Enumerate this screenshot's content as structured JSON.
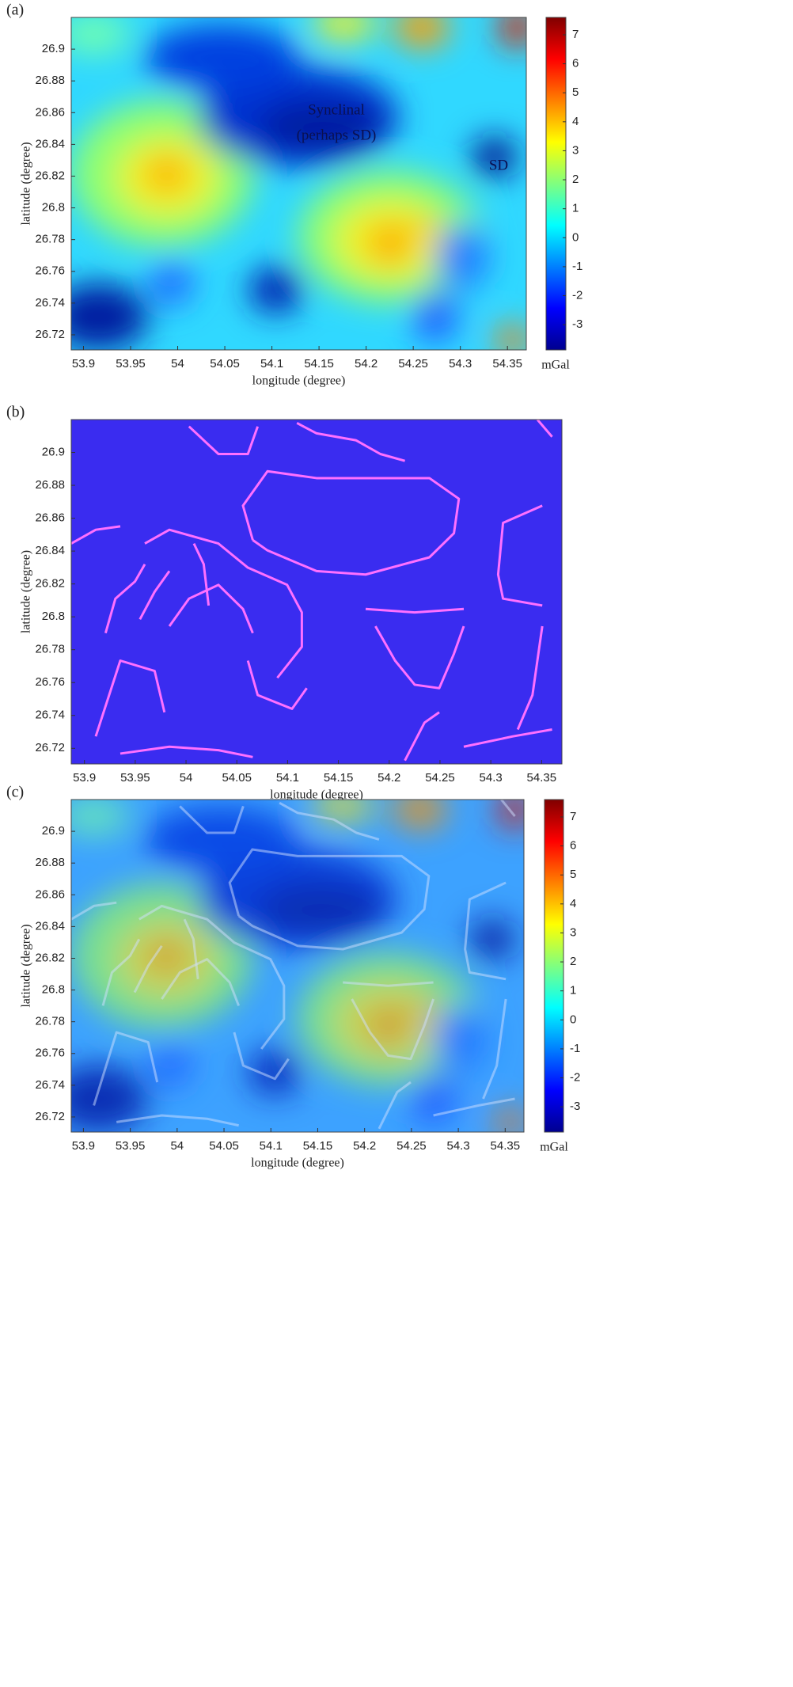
{
  "chart_data": [
    {
      "type": "heatmap",
      "label": "(a)",
      "colormap": "jet",
      "xlabel": "longitude (degree)",
      "ylabel": "latitude (degree)",
      "xlim": [
        53.887,
        54.37
      ],
      "ylim": [
        26.7105,
        26.92
      ],
      "xticks": [
        53.9,
        53.95,
        54,
        54.05,
        54.1,
        54.15,
        54.2,
        54.25,
        54.3,
        54.35
      ],
      "yticks": [
        26.72,
        26.74,
        26.76,
        26.78,
        26.8,
        26.82,
        26.84,
        26.86,
        26.88,
        26.9
      ],
      "clim": [
        -3.87,
        7.6
      ],
      "cticks": [
        -3,
        -2,
        -1,
        0,
        1,
        2,
        3,
        4,
        5,
        6,
        7
      ],
      "clabel": "mGal",
      "annotations": [
        "Synclinal",
        "(perhaps SD)",
        "SD"
      ]
    },
    {
      "type": "lineaments",
      "label": "(b)",
      "xlabel": "longitude (degree)",
      "ylabel": "latitude (degree)",
      "xlim": [
        53.887,
        54.37
      ],
      "ylim": [
        26.7105,
        26.92
      ],
      "xticks": [
        53.9,
        53.95,
        54,
        54.05,
        54.1,
        54.15,
        54.2,
        54.25,
        54.3,
        54.35
      ],
      "yticks": [
        26.72,
        26.74,
        26.76,
        26.78,
        26.8,
        26.82,
        26.84,
        26.86,
        26.88,
        26.9
      ]
    },
    {
      "type": "heatmap-overlay",
      "label": "(c)",
      "colormap": "jet",
      "xlabel": "longitude (degree)",
      "ylabel": "latitude (degree)",
      "xlim": [
        53.887,
        54.37
      ],
      "ylim": [
        26.7105,
        26.92
      ],
      "xticks": [
        53.9,
        53.95,
        54,
        54.05,
        54.1,
        54.15,
        54.2,
        54.25,
        54.3,
        54.35
      ],
      "yticks": [
        26.72,
        26.74,
        26.76,
        26.78,
        26.8,
        26.82,
        26.84,
        26.86,
        26.88,
        26.9
      ],
      "clim": [
        -3.87,
        7.6
      ],
      "cticks": [
        -3,
        -2,
        -1,
        0,
        1,
        2,
        3,
        4,
        5,
        6,
        7
      ],
      "clabel": "mGal"
    }
  ]
}
